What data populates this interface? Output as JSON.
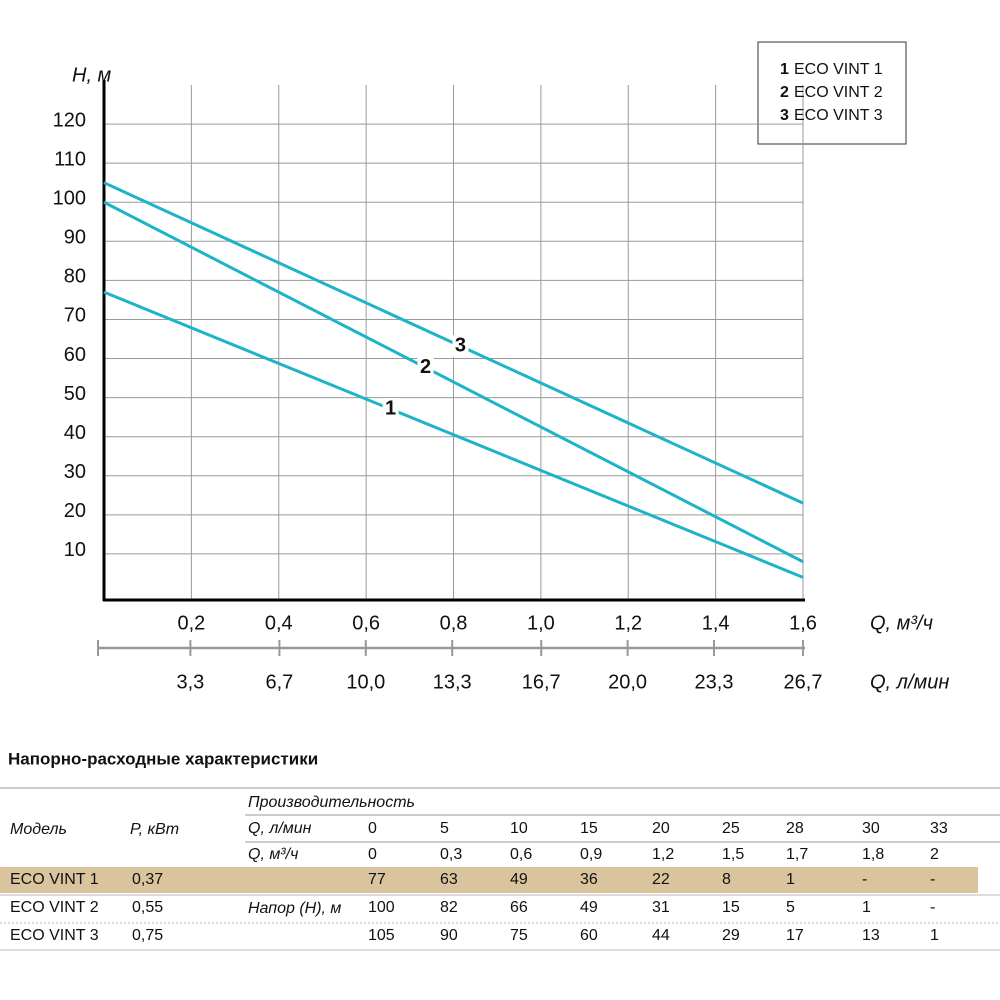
{
  "chart_data": {
    "type": "line",
    "ylabel": "H, м",
    "xlabel": "Q, м³/ч",
    "x2label": "Q, л/мин",
    "x": [
      0,
      1.6
    ],
    "xlim": [
      0,
      1.6
    ],
    "xticks": [
      {
        "value": 0.2,
        "label": "0,2"
      },
      {
        "value": 0.4,
        "label": "0,4"
      },
      {
        "value": 0.6,
        "label": "0,6"
      },
      {
        "value": 0.8,
        "label": "0,8"
      },
      {
        "value": 1.0,
        "label": "1,0"
      },
      {
        "value": 1.2,
        "label": "1,2"
      },
      {
        "value": 1.4,
        "label": "1,4"
      },
      {
        "value": 1.6,
        "label": "1,6"
      }
    ],
    "x2lim": [
      0,
      26.7
    ],
    "x2ticks": [
      {
        "value": 3.3,
        "label": "3,3"
      },
      {
        "value": 6.7,
        "label": "6,7"
      },
      {
        "value": 10.0,
        "label": "10,0"
      },
      {
        "value": 13.3,
        "label": "13,3"
      },
      {
        "value": 16.7,
        "label": "16,7"
      },
      {
        "value": 20.0,
        "label": "20,0"
      },
      {
        "value": 23.3,
        "label": "23,3"
      },
      {
        "value": 26.7,
        "label": "26,7"
      }
    ],
    "ylim": [
      0,
      130
    ],
    "yticks": [
      10,
      20,
      30,
      40,
      50,
      60,
      70,
      80,
      90,
      100,
      110,
      120
    ],
    "grid": true,
    "legend": "top-right",
    "series": [
      {
        "name": "ECO VINT 1",
        "label": "1",
        "color": "#1db3c9",
        "values": [
          77,
          4
        ]
      },
      {
        "name": "ECO VINT 2",
        "label": "2",
        "color": "#1db3c9",
        "values": [
          100,
          8
        ]
      },
      {
        "name": "ECO VINT 3",
        "label": "3",
        "color": "#1db3c9",
        "values": [
          105,
          23
        ]
      }
    ]
  },
  "table": {
    "title": "Напорно-расходные характеристики",
    "header": {
      "model": "Модель",
      "power": "P, кВт",
      "performance": "Производительность",
      "q_lmin_label": "Q, л/мин",
      "q_lmin": [
        "0",
        "5",
        "10",
        "15",
        "20",
        "25",
        "28",
        "30",
        "33"
      ],
      "q_m3h_label": "Q, м³/ч",
      "q_m3h": [
        "0",
        "0,3",
        "0,6",
        "0,9",
        "1,2",
        "1,5",
        "1,7",
        "1,8",
        "2"
      ],
      "head_label": "Напор (H), м"
    },
    "rows": [
      {
        "model": "ECO VINT 1",
        "power": "0,37",
        "values": [
          "77",
          "63",
          "49",
          "36",
          "22",
          "8",
          "1",
          "-",
          "-"
        ]
      },
      {
        "model": "ECO VINT 2",
        "power": "0,55",
        "values": [
          "100",
          "82",
          "66",
          "49",
          "31",
          "15",
          "5",
          "1",
          "-"
        ]
      },
      {
        "model": "ECO VINT 3",
        "power": "0,75",
        "values": [
          "105",
          "90",
          "75",
          "60",
          "44",
          "29",
          "17",
          "13",
          "1"
        ]
      }
    ]
  }
}
